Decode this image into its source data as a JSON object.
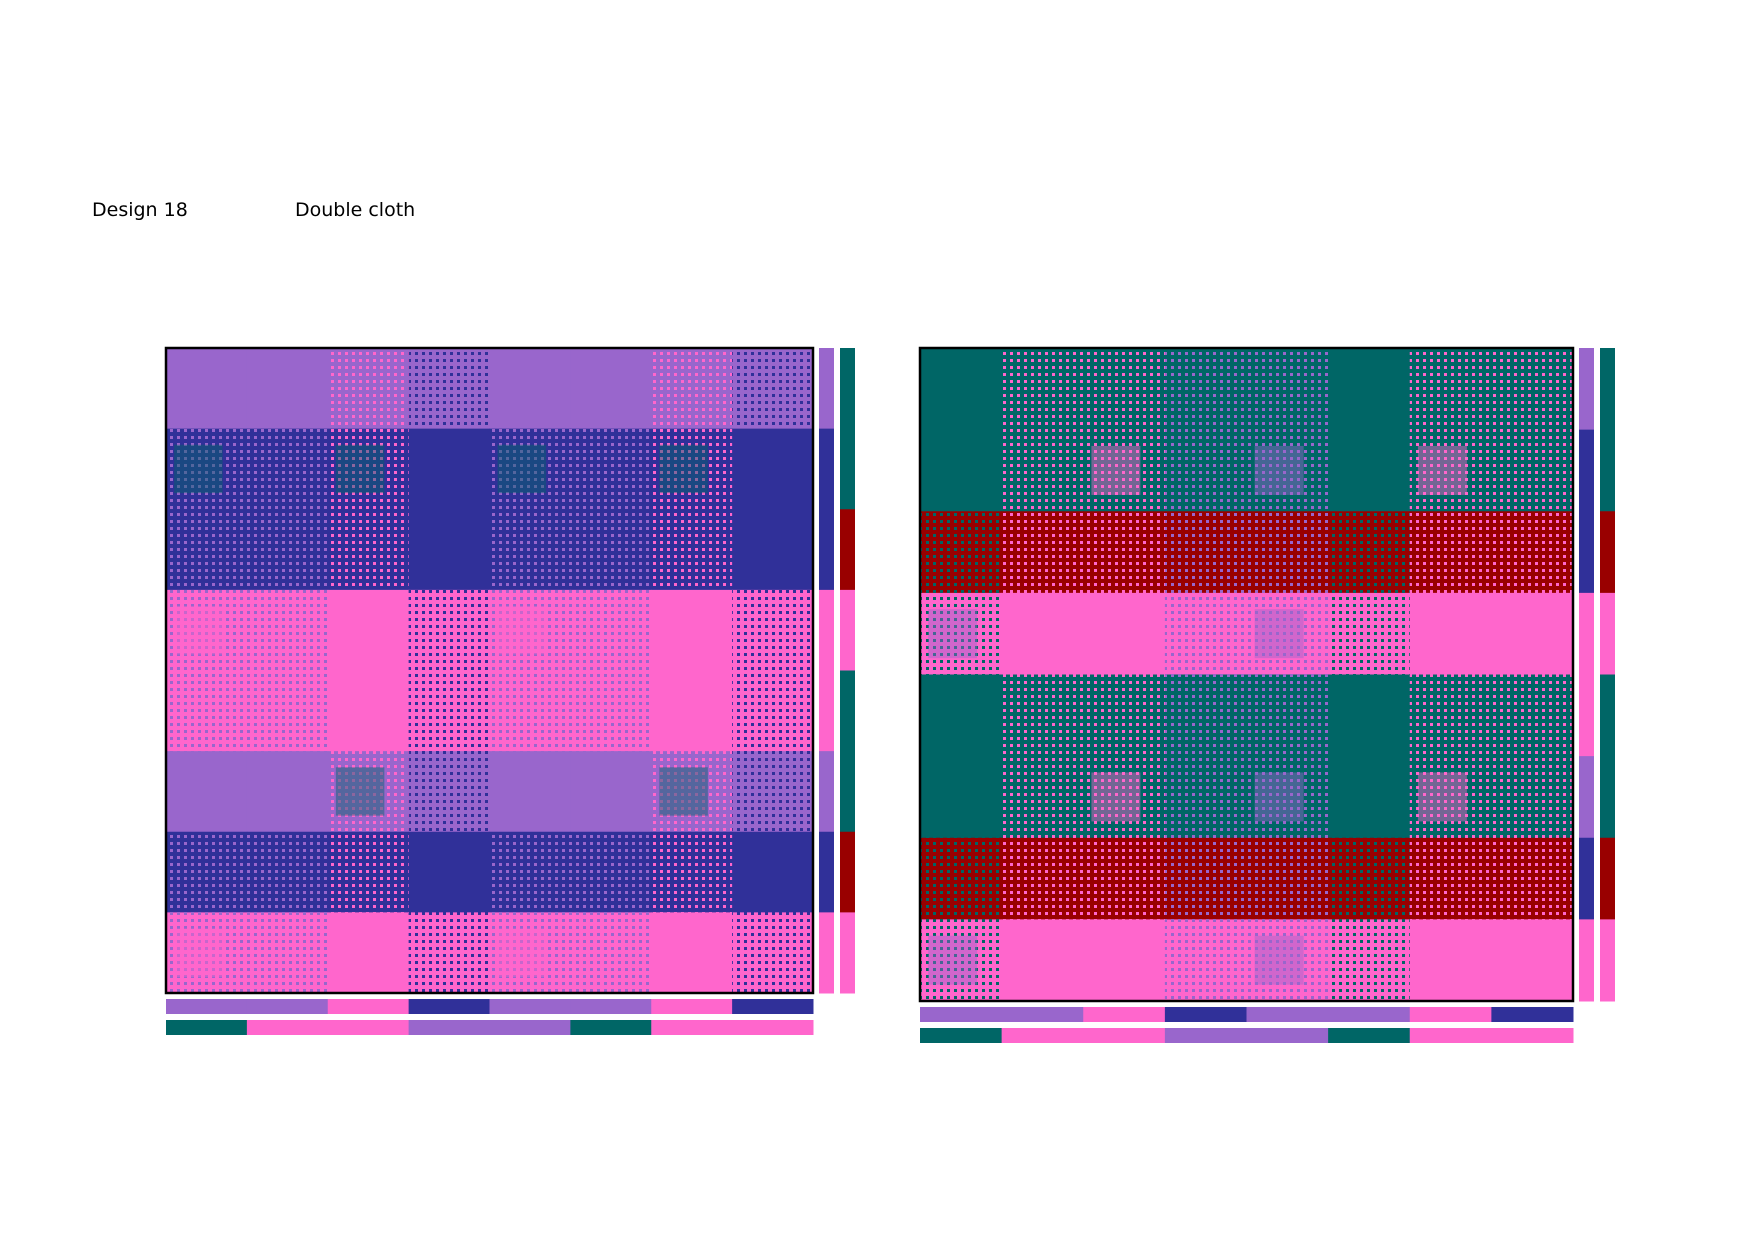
{
  "header": {
    "design": "Design 18",
    "type": "Double cloth"
  }
}
